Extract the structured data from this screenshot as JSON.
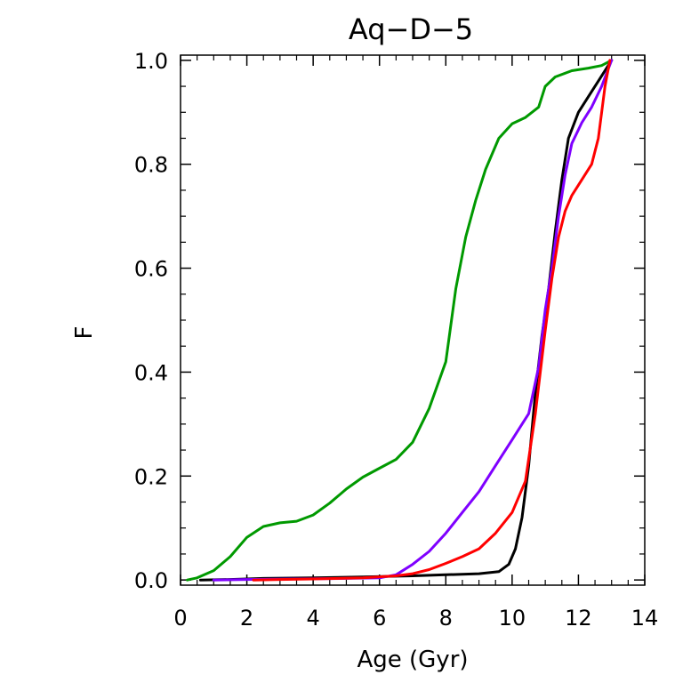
{
  "chart_data": {
    "type": "line",
    "title": "Aq−D−5",
    "xlabel": "Age (Gyr)",
    "ylabel": "F",
    "xlim": [
      0,
      14
    ],
    "ylim": [
      -0.01,
      1.01
    ],
    "grid": false,
    "x_ticks": [
      0,
      2,
      4,
      6,
      8,
      10,
      12,
      14
    ],
    "x_tick_labels": [
      "0",
      "2",
      "4",
      "6",
      "8",
      "10",
      "12",
      "14"
    ],
    "y_ticks": [
      0.0,
      0.2,
      0.4,
      0.6,
      0.8,
      1.0
    ],
    "y_tick_labels": [
      "0.0",
      "0.2",
      "0.4",
      "0.6",
      "0.8",
      "1.0"
    ],
    "series": [
      {
        "name": "green",
        "color": "#009900",
        "points": [
          [
            0.2,
            0.0
          ],
          [
            0.5,
            0.004
          ],
          [
            1.0,
            0.018
          ],
          [
            1.5,
            0.045
          ],
          [
            2.0,
            0.082
          ],
          [
            2.5,
            0.103
          ],
          [
            3.0,
            0.11
          ],
          [
            3.5,
            0.113
          ],
          [
            4.0,
            0.125
          ],
          [
            4.5,
            0.148
          ],
          [
            5.0,
            0.175
          ],
          [
            5.5,
            0.198
          ],
          [
            6.0,
            0.215
          ],
          [
            6.5,
            0.232
          ],
          [
            7.0,
            0.265
          ],
          [
            7.5,
            0.33
          ],
          [
            8.0,
            0.42
          ],
          [
            8.3,
            0.56
          ],
          [
            8.6,
            0.66
          ],
          [
            8.9,
            0.73
          ],
          [
            9.2,
            0.79
          ],
          [
            9.6,
            0.85
          ],
          [
            10.0,
            0.878
          ],
          [
            10.4,
            0.89
          ],
          [
            10.8,
            0.91
          ],
          [
            11.0,
            0.95
          ],
          [
            11.3,
            0.968
          ],
          [
            11.8,
            0.98
          ],
          [
            12.3,
            0.985
          ],
          [
            12.7,
            0.99
          ],
          [
            13.0,
            1.0
          ]
        ]
      },
      {
        "name": "black",
        "color": "#000000",
        "points": [
          [
            0.6,
            0.0
          ],
          [
            1.5,
            0.001
          ],
          [
            2.5,
            0.003
          ],
          [
            4.0,
            0.004
          ],
          [
            5.5,
            0.006
          ],
          [
            7.0,
            0.008
          ],
          [
            8.0,
            0.01
          ],
          [
            9.0,
            0.012
          ],
          [
            9.6,
            0.016
          ],
          [
            9.9,
            0.03
          ],
          [
            10.1,
            0.06
          ],
          [
            10.3,
            0.12
          ],
          [
            10.5,
            0.22
          ],
          [
            10.7,
            0.36
          ],
          [
            10.9,
            0.47
          ],
          [
            11.1,
            0.56
          ],
          [
            11.3,
            0.67
          ],
          [
            11.5,
            0.77
          ],
          [
            11.7,
            0.85
          ],
          [
            12.0,
            0.9
          ],
          [
            12.3,
            0.93
          ],
          [
            12.6,
            0.96
          ],
          [
            13.0,
            1.0
          ]
        ]
      },
      {
        "name": "purple",
        "color": "#7f00ff",
        "points": [
          [
            1.0,
            0.0
          ],
          [
            2.0,
            0.001
          ],
          [
            3.5,
            0.002
          ],
          [
            5.0,
            0.003
          ],
          [
            6.0,
            0.004
          ],
          [
            6.5,
            0.01
          ],
          [
            7.0,
            0.03
          ],
          [
            7.5,
            0.055
          ],
          [
            8.0,
            0.09
          ],
          [
            8.5,
            0.13
          ],
          [
            9.0,
            0.17
          ],
          [
            9.5,
            0.22
          ],
          [
            10.0,
            0.27
          ],
          [
            10.3,
            0.3
          ],
          [
            10.5,
            0.32
          ],
          [
            10.8,
            0.41
          ],
          [
            11.0,
            0.52
          ],
          [
            11.2,
            0.6
          ],
          [
            11.4,
            0.7
          ],
          [
            11.6,
            0.78
          ],
          [
            11.8,
            0.84
          ],
          [
            12.1,
            0.88
          ],
          [
            12.4,
            0.91
          ],
          [
            12.7,
            0.95
          ],
          [
            13.0,
            1.0
          ]
        ]
      },
      {
        "name": "red",
        "color": "#ff0000",
        "points": [
          [
            2.2,
            0.0
          ],
          [
            3.0,
            0.001
          ],
          [
            4.0,
            0.002
          ],
          [
            5.5,
            0.004
          ],
          [
            6.5,
            0.008
          ],
          [
            7.0,
            0.012
          ],
          [
            7.5,
            0.02
          ],
          [
            8.0,
            0.032
          ],
          [
            8.5,
            0.045
          ],
          [
            9.0,
            0.06
          ],
          [
            9.5,
            0.09
          ],
          [
            10.0,
            0.13
          ],
          [
            10.4,
            0.19
          ],
          [
            10.7,
            0.32
          ],
          [
            11.0,
            0.48
          ],
          [
            11.2,
            0.58
          ],
          [
            11.4,
            0.66
          ],
          [
            11.6,
            0.71
          ],
          [
            11.8,
            0.74
          ],
          [
            12.1,
            0.77
          ],
          [
            12.4,
            0.8
          ],
          [
            12.6,
            0.85
          ],
          [
            12.8,
            0.95
          ],
          [
            12.95,
            1.0
          ]
        ]
      }
    ]
  }
}
